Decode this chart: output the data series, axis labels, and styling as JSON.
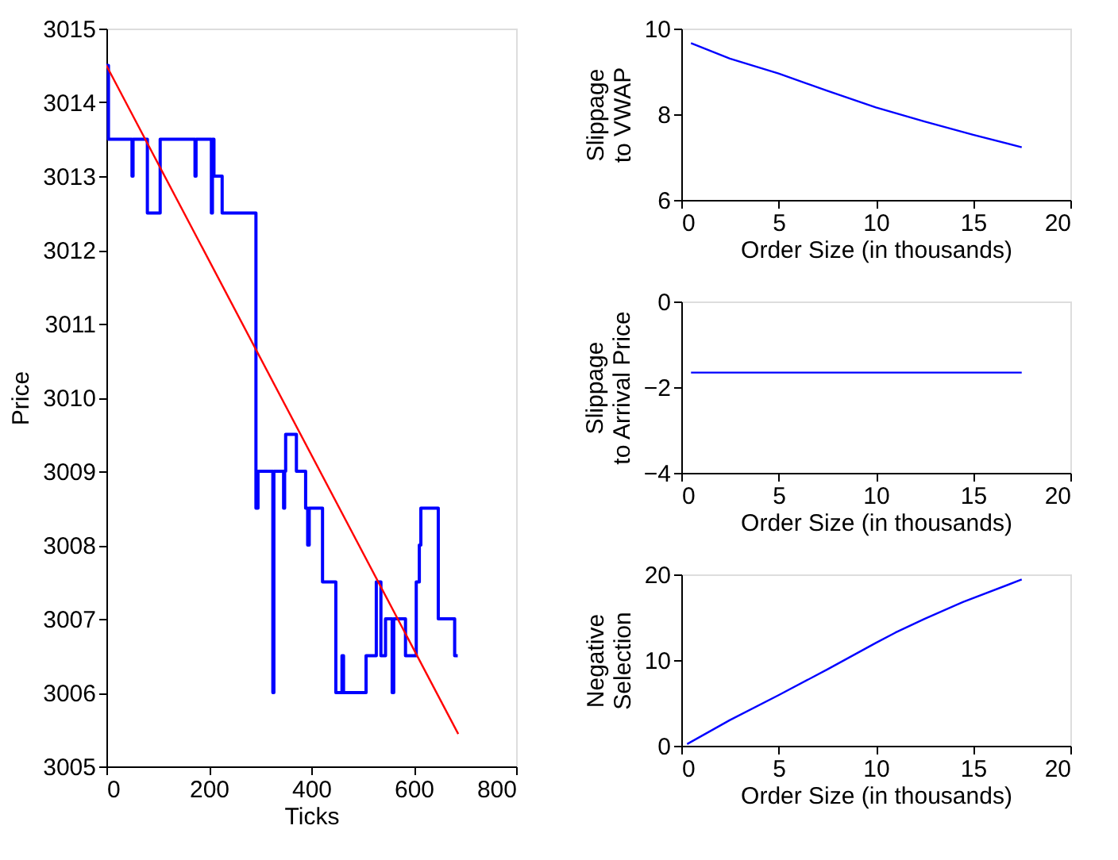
{
  "chart_data": [
    {
      "type": "step",
      "xlabel": "Ticks",
      "ylabel": "Price",
      "xlim": [
        0,
        800
      ],
      "ylim": [
        3005,
        3015
      ],
      "xticks": [
        0,
        200,
        400,
        600,
        800
      ],
      "yticks": [
        3005,
        3006,
        3007,
        3008,
        3009,
        3010,
        3011,
        3012,
        3013,
        3014,
        3015
      ],
      "grid": false,
      "series": [
        {
          "type": "step",
          "color": "#0000ff",
          "x": [
            0,
            4,
            50,
            52,
            80,
            105,
            173,
            175,
            205,
            207,
            210,
            226,
            292,
            296,
            325,
            327,
            346,
            348,
            350,
            371,
            389,
            393,
            396,
            422,
            448,
            460,
            463,
            507,
            527,
            536,
            545,
            558,
            561,
            584,
            605,
            611,
            614,
            648,
            680,
            686
          ],
          "values": [
            3014.5,
            3013.5,
            3013,
            3013.5,
            3012.5,
            3013.5,
            3013,
            3013.5,
            3012.5,
            3013.5,
            3013,
            3012.5,
            3008.5,
            3009,
            3006,
            3009,
            3008.5,
            3009,
            3009.5,
            3009,
            3008.5,
            3008,
            3008.5,
            3007.5,
            3006,
            3006.5,
            3006,
            3006.5,
            3007.5,
            3006.5,
            3007,
            3006,
            3007,
            3006.5,
            3007.5,
            3008,
            3008.5,
            3007,
            3006.5,
            3006.5
          ]
        },
        {
          "type": "line",
          "color": "#ff0000",
          "x": [
            0,
            687
          ],
          "values": [
            3014.5,
            3005.44
          ]
        }
      ]
    },
    {
      "type": "line",
      "xlabel": "Order Size (in thousands)",
      "ylabel": "Slippage\nto VWAP",
      "xlim": [
        0,
        20
      ],
      "ylim": [
        6,
        10
      ],
      "xticks": [
        0,
        5,
        10,
        15,
        20
      ],
      "yticks": [
        6,
        8,
        10
      ],
      "grid": false,
      "series": [
        {
          "color": "#0000ff",
          "x": [
            0.5,
            2.5,
            5,
            7.5,
            10,
            12.5,
            15,
            17.5
          ],
          "values": [
            9.66,
            9.3,
            8.95,
            8.55,
            8.16,
            7.83,
            7.52,
            7.23
          ]
        }
      ]
    },
    {
      "type": "line",
      "xlabel": "Order Size (in thousands)",
      "ylabel": "Slippage\nto Arrival Price",
      "xlim": [
        0,
        20
      ],
      "ylim": [
        -4,
        0
      ],
      "xticks": [
        0,
        5,
        10,
        15,
        20
      ],
      "yticks": [
        -4,
        -2,
        0
      ],
      "grid": false,
      "series": [
        {
          "color": "#0000ff",
          "x": [
            0.5,
            17.5
          ],
          "values": [
            -1.66,
            -1.66
          ]
        }
      ]
    },
    {
      "type": "line",
      "xlabel": "Order Size (in thousands)",
      "ylabel": "Negative\nSelection",
      "xlim": [
        0,
        20
      ],
      "ylim": [
        0,
        20
      ],
      "xticks": [
        0,
        5,
        10,
        15,
        20
      ],
      "yticks": [
        0,
        10,
        20
      ],
      "grid": false,
      "series": [
        {
          "color": "#0000ff",
          "x": [
            0.3,
            2.5,
            5,
            7.5,
            10,
            11,
            12.5,
            14.5,
            17.5
          ],
          "values": [
            0.2,
            3,
            5.9,
            8.9,
            12,
            13.2,
            14.8,
            16.8,
            19.4
          ]
        }
      ]
    }
  ]
}
